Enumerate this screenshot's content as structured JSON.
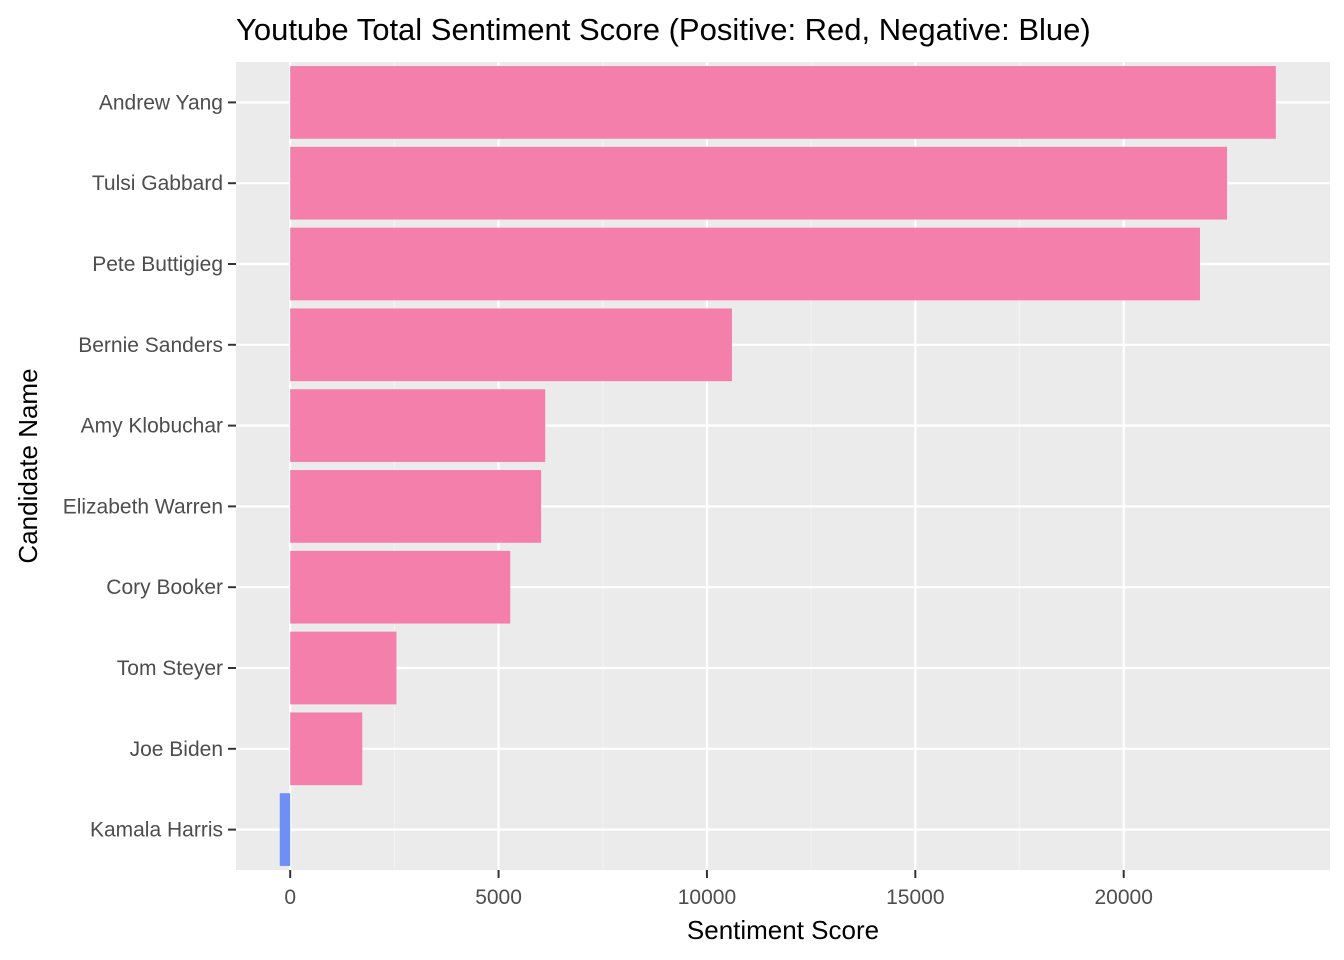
{
  "chart_data": {
    "type": "bar",
    "orientation": "horizontal",
    "title": "Youtube Total Sentiment Score (Positive: Red, Negative: Blue)",
    "xlabel": "Sentiment Score",
    "ylabel": "Candidate Name",
    "categories": [
      "Andrew Yang",
      "Tulsi Gabbard",
      "Pete Buttigieg",
      "Bernie Sanders",
      "Amy Klobuchar",
      "Elizabeth Warren",
      "Cory Booker",
      "Tom Steyer",
      "Joe Biden",
      "Kamala Harris"
    ],
    "values": [
      23650,
      22480,
      21830,
      10600,
      6120,
      6020,
      5280,
      2550,
      1730,
      -250
    ],
    "xlim": [
      -1300,
      24950
    ],
    "x_ticks": [
      0,
      5000,
      10000,
      15000,
      20000
    ],
    "x_tick_labels": [
      "0",
      "5000",
      "10000",
      "15000",
      "20000"
    ],
    "grid": true,
    "colors": {
      "positive": "#f47fab",
      "negative": "#6f8ff5",
      "panel_background": "#ebebeb",
      "grid_major": "#ffffff",
      "grid_minor": "#f2f2f2",
      "tick_text": "#4d4d4d",
      "tick_mark": "#333333"
    }
  }
}
